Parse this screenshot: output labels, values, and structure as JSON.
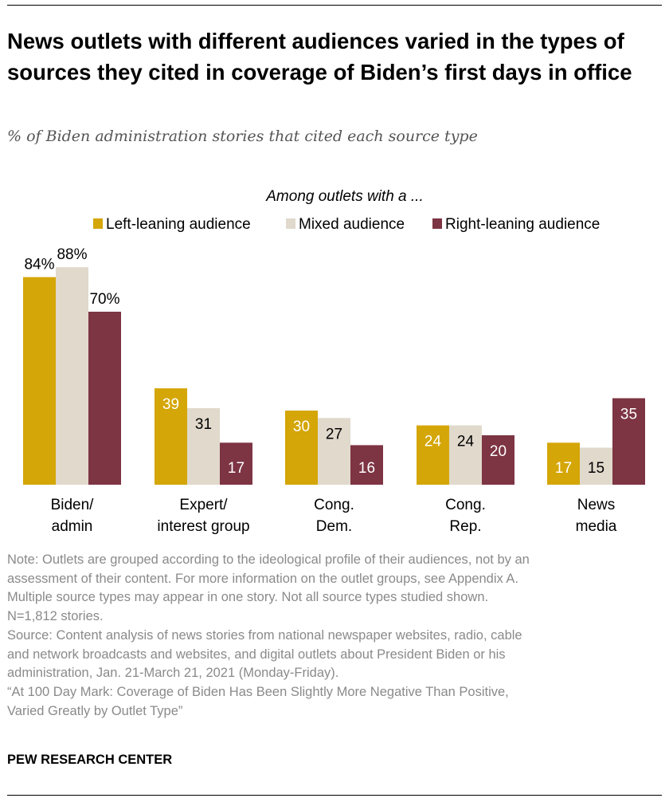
{
  "title": "News outlets with different audiences varied in the types of sources they cited in coverage of Biden’s first days in office",
  "subtitle": "% of Biden administration stories that cited each source type",
  "chart_data": {
    "type": "bar",
    "legend_title": "Among outlets with a ...",
    "legend_position": "top-center",
    "categories": [
      [
        "Biden/",
        "admin"
      ],
      [
        "Expert/",
        "interest group"
      ],
      [
        "Cong.",
        "Dem."
      ],
      [
        "Cong.",
        "Rep."
      ],
      [
        "News",
        "media"
      ]
    ],
    "series": [
      {
        "name": "Left-leaning audience",
        "color": "#D4A607",
        "label_color": "#ffffff",
        "values": [
          84,
          39,
          30,
          24,
          17
        ]
      },
      {
        "name": "Mixed audience",
        "color": "#E0D9CC",
        "label_color": "#000000",
        "values": [
          88,
          31,
          27,
          24,
          15
        ]
      },
      {
        "name": "Right-leaning audience",
        "color": "#7D3443",
        "label_color": "#ffffff",
        "values": [
          70,
          17,
          16,
          20,
          35
        ]
      }
    ],
    "first_category_labels": [
      "84%",
      "88%",
      "70%"
    ],
    "ylim": [
      0,
      100
    ],
    "grid": false,
    "xlabel": "",
    "ylabel": ""
  },
  "notes": [
    "Note: Outlets are grouped according to the ideological profile of their audiences, not by an",
    "assessment of their content. For more information on the outlet groups, see Appendix A.",
    "Multiple source types may appear in one story. Not all source types studied shown.",
    "N=1,812 stories.",
    "Source: Content analysis of news stories from national newspaper websites, radio, cable",
    "and network broadcasts and websites, and digital outlets about President Biden or his",
    "administration, Jan. 21-March 21, 2021 (Monday-Friday).",
    "“At 100 Day Mark: Coverage of Biden Has Been Slightly More Negative Than Positive,",
    "Varied Greatly by Outlet Type”"
  ],
  "source_logo": "PEW RESEARCH CENTER"
}
